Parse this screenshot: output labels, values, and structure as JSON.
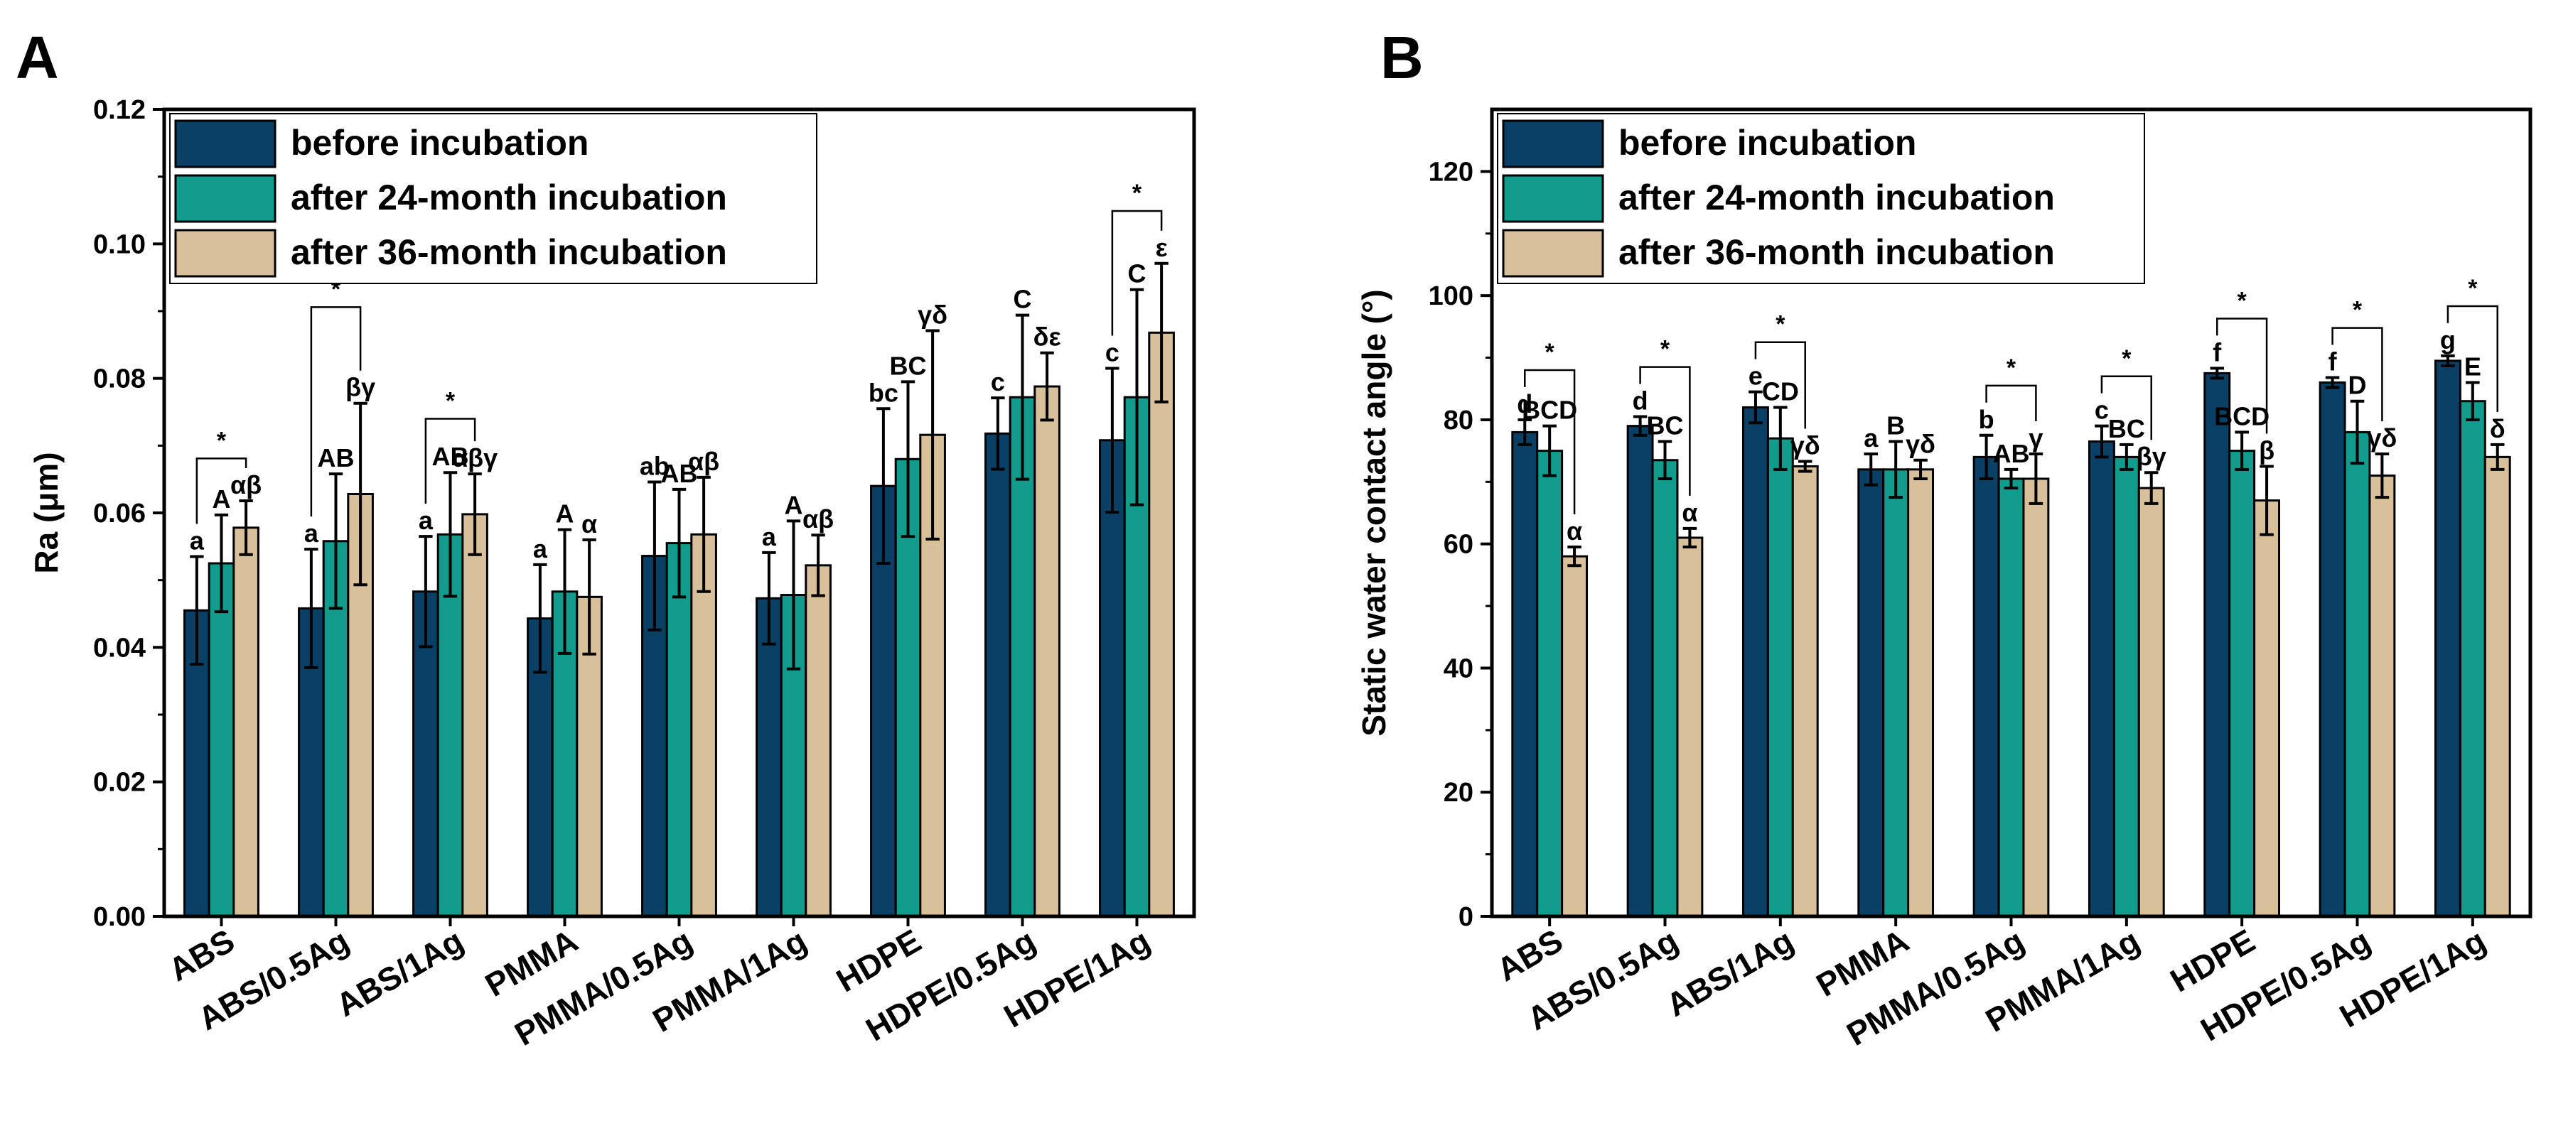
{
  "chart_data": [
    {
      "panel": "A",
      "type": "bar",
      "title": "",
      "xlabel": "",
      "ylabel": "Ra (μm)",
      "ylim": [
        0,
        0.12
      ],
      "yticks": [
        "0.00",
        "0.02",
        "0.04",
        "0.06",
        "0.08",
        "0.10",
        "0.12"
      ],
      "categories": [
        "ABS",
        "ABS/0.5Ag",
        "ABS/1Ag",
        "PMMA",
        "PMMA/0.5Ag",
        "PMMA/1Ag",
        "HDPE",
        "HDPE/0.5Ag",
        "HDPE/1Ag"
      ],
      "legend_position": "top-left",
      "series": [
        {
          "name": "before incubation",
          "color": "#0b4066",
          "values": [
            0.0455,
            0.0458,
            0.0483,
            0.0443,
            0.0536,
            0.0473,
            0.064,
            0.0718,
            0.0708
          ],
          "errors": [
            0.008,
            0.0088,
            0.0082,
            0.008,
            0.011,
            0.0068,
            0.0115,
            0.0053,
            0.0107
          ],
          "labels": [
            "a",
            "a",
            "a",
            "a",
            "ab",
            "a",
            "bc",
            "c",
            "c"
          ]
        },
        {
          "name": "after 24-month incubation",
          "color": "#119c8e",
          "values": [
            0.0525,
            0.0558,
            0.0568,
            0.0483,
            0.0555,
            0.0478,
            0.068,
            0.0772,
            0.0772
          ],
          "errors": [
            0.0072,
            0.01,
            0.0092,
            0.0092,
            0.008,
            0.011,
            0.0115,
            0.0122,
            0.016
          ],
          "labels": [
            "A",
            "AB",
            "AB",
            "A",
            "AB",
            "A",
            "BC",
            "C",
            "C"
          ]
        },
        {
          "name": "after 36-month incubation",
          "color": "#d8c09a",
          "values": [
            0.0578,
            0.0628,
            0.0598,
            0.0475,
            0.0568,
            0.0522,
            0.0716,
            0.0788,
            0.0868
          ],
          "errors": [
            0.004,
            0.0135,
            0.006,
            0.0085,
            0.0085,
            0.0045,
            0.0155,
            0.005,
            0.0103
          ],
          "labels": [
            "αβ",
            "βγ",
            "αβγ",
            "α",
            "αβ",
            "αβ",
            "γδ",
            "δε",
            "ε"
          ]
        }
      ],
      "significance": [
        {
          "category": "ABS",
          "label": "*"
        },
        {
          "category": "ABS/0.5Ag",
          "label": "*"
        },
        {
          "category": "ABS/1Ag",
          "label": "*"
        },
        {
          "category": "HDPE/1Ag",
          "label": "*"
        }
      ]
    },
    {
      "panel": "B",
      "type": "bar",
      "title": "",
      "xlabel": "",
      "ylabel": "Static water contact angle (°)",
      "ylim": [
        0,
        130
      ],
      "yticks": [
        "0",
        "20",
        "40",
        "60",
        "80",
        "100",
        "120"
      ],
      "categories": [
        "ABS",
        "ABS/0.5Ag",
        "ABS/1Ag",
        "PMMA",
        "PMMA/0.5Ag",
        "PMMA/1Ag",
        "HDPE",
        "HDPE/0.5Ag",
        "HDPE/1Ag"
      ],
      "legend_position": "top-left",
      "series": [
        {
          "name": "before incubation",
          "color": "#0b4066",
          "values": [
            78.0,
            79.0,
            82.0,
            72.0,
            74.0,
            76.5,
            87.5,
            86.0,
            89.5
          ],
          "errors": [
            2.0,
            1.5,
            2.5,
            2.5,
            3.5,
            2.5,
            0.8,
            0.8,
            0.8
          ],
          "labels": [
            "d",
            "d",
            "e",
            "a",
            "b",
            "c",
            "f",
            "f",
            "g"
          ]
        },
        {
          "name": "after 24-month incubation",
          "color": "#119c8e",
          "values": [
            75.0,
            73.5,
            77.0,
            72.0,
            70.5,
            74.0,
            75.0,
            78.0,
            83.0
          ],
          "errors": [
            4.0,
            3.0,
            5.0,
            4.5,
            1.5,
            2.0,
            3.0,
            5.0,
            3.0
          ],
          "labels": [
            "BCD",
            "BC",
            "CD",
            "B",
            "AB",
            "BC",
            "BCD",
            "D",
            "E"
          ]
        },
        {
          "name": "after 36-month incubation",
          "color": "#d8c09a",
          "values": [
            58.0,
            61.0,
            72.5,
            72.0,
            70.5,
            69.0,
            67.0,
            71.0,
            74.0
          ],
          "errors": [
            1.5,
            1.5,
            0.8,
            1.5,
            4.0,
            2.5,
            5.5,
            3.5,
            2.0
          ],
          "labels": [
            "α",
            "α",
            "γδ",
            "γδ",
            "γ",
            "βγ",
            "β",
            "γδ",
            "δ"
          ]
        }
      ],
      "significance": [
        {
          "category": "ABS",
          "label": "*"
        },
        {
          "category": "ABS/0.5Ag",
          "label": "*"
        },
        {
          "category": "ABS/1Ag",
          "label": "*"
        },
        {
          "category": "PMMA/0.5Ag",
          "label": "*"
        },
        {
          "category": "PMMA/1Ag",
          "label": "*"
        },
        {
          "category": "HDPE",
          "label": "*"
        },
        {
          "category": "HDPE/0.5Ag",
          "label": "*"
        },
        {
          "category": "HDPE/1Ag",
          "label": "*"
        }
      ]
    }
  ]
}
